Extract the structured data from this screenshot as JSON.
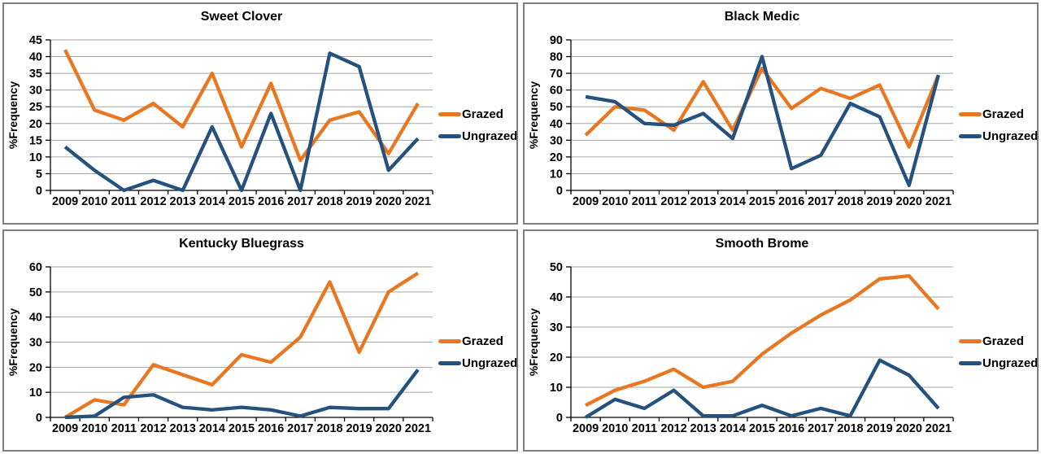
{
  "colors": {
    "grazed": "#E87722",
    "ungrazed": "#24517D",
    "gridline": "#A6A6A6",
    "axis": "#000000",
    "panel_border": "#7F7F7F",
    "text": "#000000",
    "background": "#FFFFFF"
  },
  "chart_data": [
    {
      "type": "line",
      "title": "Sweet Clover",
      "ylabel": "%Frequency",
      "ylim": [
        0,
        45
      ],
      "ytick_step": 5,
      "grid": true,
      "legend_position": "right",
      "categories": [
        "2009",
        "2010",
        "2011",
        "2012",
        "2013",
        "2014",
        "2015",
        "2016",
        "2017",
        "2018",
        "2019",
        "2020",
        "2021"
      ],
      "series": [
        {
          "name": "Grazed",
          "color": "#E87722",
          "values": [
            42,
            24,
            21,
            26,
            19,
            35,
            13,
            32,
            9,
            21,
            23.5,
            11,
            26
          ]
        },
        {
          "name": "Ungrazed",
          "color": "#24517D",
          "values": [
            13,
            6,
            0,
            3,
            0,
            19,
            0,
            23,
            0,
            41,
            37,
            6,
            15.5
          ]
        }
      ]
    },
    {
      "type": "line",
      "title": "Black Medic",
      "ylabel": "%Frequency",
      "ylim": [
        0,
        90
      ],
      "ytick_step": 10,
      "grid": true,
      "legend_position": "right",
      "categories": [
        "2009",
        "2010",
        "2011",
        "2012",
        "2013",
        "2014",
        "2015",
        "2016",
        "2017",
        "2018",
        "2019",
        "2020",
        "2021"
      ],
      "series": [
        {
          "name": "Grazed",
          "color": "#E87722",
          "values": [
            33,
            50,
            48,
            36,
            65,
            36,
            73,
            49,
            61,
            55,
            63,
            26,
            69
          ]
        },
        {
          "name": "Ungrazed",
          "color": "#24517D",
          "values": [
            56,
            53,
            40,
            39,
            46,
            31,
            80,
            13,
            21,
            52,
            44,
            3,
            69
          ]
        }
      ]
    },
    {
      "type": "line",
      "title": "Kentucky Bluegrass",
      "ylabel": "%Frequency",
      "ylim": [
        0,
        60
      ],
      "ytick_step": 10,
      "grid": true,
      "legend_position": "right",
      "categories": [
        "2009",
        "2010",
        "2011",
        "2012",
        "2013",
        "2014",
        "2015",
        "2016",
        "2017",
        "2018",
        "2019",
        "2020",
        "2021"
      ],
      "series": [
        {
          "name": "Grazed",
          "color": "#E87722",
          "values": [
            0,
            7,
            5,
            21,
            17,
            13,
            25,
            22,
            32,
            54,
            26,
            50,
            57.5
          ]
        },
        {
          "name": "Ungrazed",
          "color": "#24517D",
          "values": [
            0,
            0.5,
            8,
            9,
            4,
            3,
            4,
            3,
            0.5,
            4,
            3.5,
            3.5,
            19
          ]
        }
      ]
    },
    {
      "type": "line",
      "title": "Smooth Brome",
      "ylabel": "%Frequency",
      "ylim": [
        0,
        50
      ],
      "ytick_step": 10,
      "grid": true,
      "legend_position": "right",
      "categories": [
        "2009",
        "2010",
        "2011",
        "2012",
        "2013",
        "2014",
        "2015",
        "2016",
        "2017",
        "2018",
        "2019",
        "2020",
        "2021"
      ],
      "series": [
        {
          "name": "Grazed",
          "color": "#E87722",
          "values": [
            4,
            9,
            12,
            16,
            10,
            12,
            21,
            28,
            34,
            39,
            46,
            47,
            36
          ]
        },
        {
          "name": "Ungrazed",
          "color": "#24517D",
          "values": [
            0,
            6,
            3,
            9,
            0.5,
            0.5,
            4,
            0.5,
            3,
            0.5,
            19,
            14,
            3
          ]
        }
      ]
    }
  ]
}
